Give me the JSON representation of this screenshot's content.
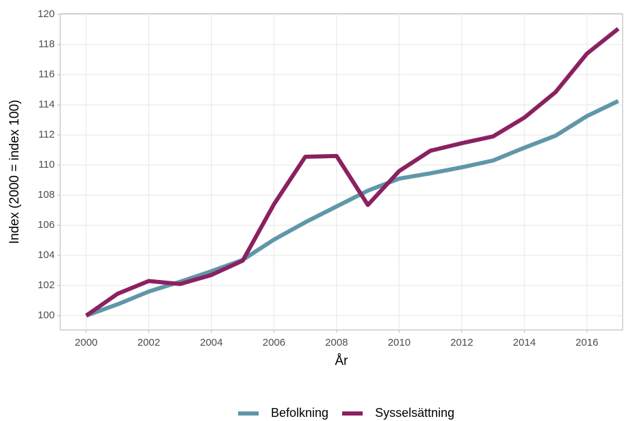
{
  "chart_data": {
    "type": "line",
    "x": [
      2000,
      2001,
      2002,
      2003,
      2004,
      2005,
      2006,
      2007,
      2008,
      2009,
      2010,
      2011,
      2012,
      2013,
      2014,
      2015,
      2016,
      2017
    ],
    "series": [
      {
        "name": "Befolkning",
        "color": "#5f97a8",
        "values": [
          100,
          100.75,
          101.6,
          102.25,
          102.95,
          103.7,
          105.05,
          106.2,
          107.25,
          108.3,
          109.1,
          109.45,
          109.85,
          110.3,
          111.15,
          111.95,
          113.25,
          114.25
        ]
      },
      {
        "name": "Sysselsättning",
        "color": "#8a2160",
        "values": [
          100,
          101.45,
          102.3,
          102.1,
          102.7,
          103.65,
          107.4,
          110.55,
          110.6,
          107.35,
          109.6,
          110.95,
          111.45,
          111.9,
          113.15,
          114.85,
          117.4,
          119.05
        ]
      }
    ],
    "xlabel": "År",
    "ylabel": "Index (2000 = index 100)",
    "xlim": [
      1999.17,
      2017.14
    ],
    "xticks": [
      2000,
      2002,
      2004,
      2006,
      2008,
      2010,
      2012,
      2014,
      2016
    ],
    "ylim": [
      99.05,
      120.05
    ],
    "yticks": [
      100,
      102,
      104,
      106,
      108,
      110,
      112,
      114,
      116,
      118,
      120
    ],
    "grid": true,
    "legend": "bottom"
  }
}
